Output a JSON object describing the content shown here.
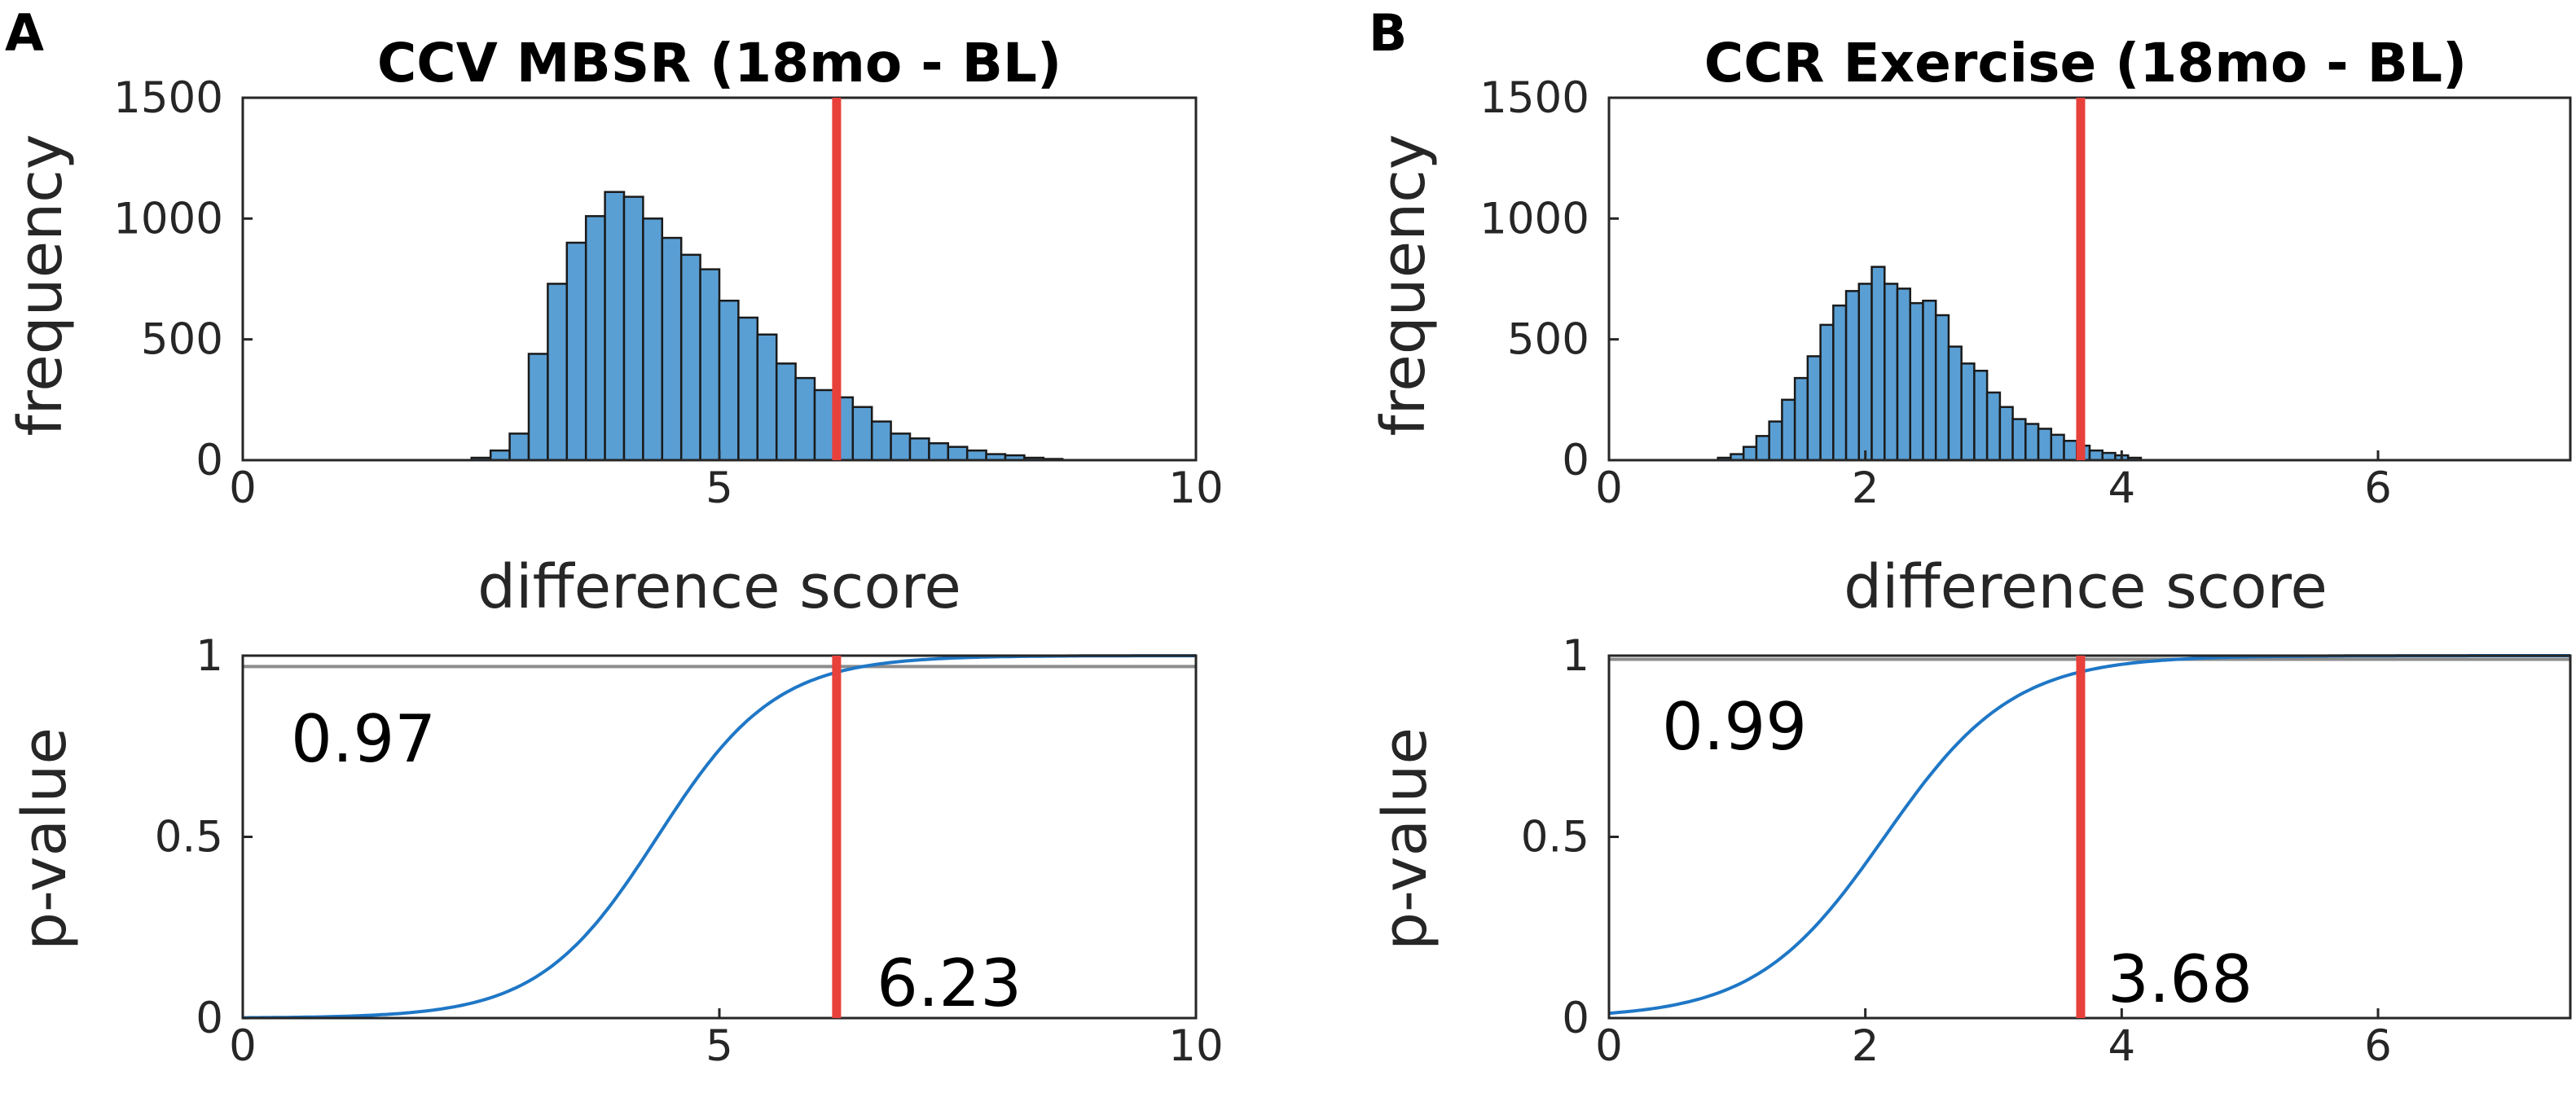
{
  "colors": {
    "bar_fill": "#5a9fd4",
    "bar_edge": "#1a1a1a",
    "threshold": "#e8403a",
    "cdf": "#1f77c6",
    "ref_line": "#8c8c8c",
    "axis": "#262626"
  },
  "chart_data": [
    {
      "id": "A",
      "panel_label": "A",
      "title": "CCV MBSR (18mo - BL)",
      "histogram": {
        "type": "bar",
        "xlabel": "difference score",
        "ylabel": "frequency",
        "xlim": [
          0,
          10
        ],
        "ylim": [
          0,
          1500
        ],
        "xticks": [
          0,
          5,
          10
        ],
        "yticks": [
          0,
          500,
          1000,
          1500
        ],
        "bin_width": 0.2,
        "bins": [
          {
            "x": 2.5,
            "y": 10
          },
          {
            "x": 2.7,
            "y": 40
          },
          {
            "x": 2.9,
            "y": 110
          },
          {
            "x": 3.1,
            "y": 440
          },
          {
            "x": 3.3,
            "y": 730
          },
          {
            "x": 3.5,
            "y": 900
          },
          {
            "x": 3.7,
            "y": 1010
          },
          {
            "x": 3.9,
            "y": 1110
          },
          {
            "x": 4.1,
            "y": 1090
          },
          {
            "x": 4.3,
            "y": 1000
          },
          {
            "x": 4.5,
            "y": 920
          },
          {
            "x": 4.7,
            "y": 850
          },
          {
            "x": 4.9,
            "y": 790
          },
          {
            "x": 5.1,
            "y": 660
          },
          {
            "x": 5.3,
            "y": 590
          },
          {
            "x": 5.5,
            "y": 520
          },
          {
            "x": 5.7,
            "y": 400
          },
          {
            "x": 5.9,
            "y": 340
          },
          {
            "x": 6.1,
            "y": 290
          },
          {
            "x": 6.3,
            "y": 260
          },
          {
            "x": 6.5,
            "y": 220
          },
          {
            "x": 6.7,
            "y": 160
          },
          {
            "x": 6.9,
            "y": 110
          },
          {
            "x": 7.1,
            "y": 90
          },
          {
            "x": 7.3,
            "y": 70
          },
          {
            "x": 7.5,
            "y": 55
          },
          {
            "x": 7.7,
            "y": 40
          },
          {
            "x": 7.9,
            "y": 25
          },
          {
            "x": 8.1,
            "y": 20
          },
          {
            "x": 8.3,
            "y": 10
          },
          {
            "x": 8.5,
            "y": 5
          }
        ],
        "threshold": 6.23
      },
      "cdf": {
        "type": "line",
        "xlabel": "",
        "ylabel": "p-value",
        "xlim": [
          0,
          10
        ],
        "ylim": [
          0,
          1
        ],
        "xticks": [
          0,
          5,
          10
        ],
        "yticks": [
          0,
          0.5,
          1
        ],
        "ytick_labels": [
          "0",
          "0.5",
          "1"
        ],
        "center": 4.35,
        "spread": 0.62,
        "ref_level": 0.97,
        "threshold": 6.23,
        "p_label": "0.97",
        "score_label": "6.23"
      }
    },
    {
      "id": "B",
      "panel_label": "B",
      "title": "CCR Exercise (18mo - BL)",
      "histogram": {
        "type": "bar",
        "xlabel": "difference score",
        "ylabel": "frequency",
        "xlim": [
          0,
          7.5
        ],
        "ylim": [
          0,
          1500
        ],
        "xticks": [
          0,
          2,
          4,
          6
        ],
        "yticks": [
          0,
          500,
          1000,
          1500
        ],
        "bin_width": 0.1,
        "bins": [
          {
            "x": 0.9,
            "y": 10
          },
          {
            "x": 1.0,
            "y": 25
          },
          {
            "x": 1.1,
            "y": 55
          },
          {
            "x": 1.2,
            "y": 100
          },
          {
            "x": 1.3,
            "y": 160
          },
          {
            "x": 1.4,
            "y": 250
          },
          {
            "x": 1.5,
            "y": 340
          },
          {
            "x": 1.6,
            "y": 430
          },
          {
            "x": 1.7,
            "y": 560
          },
          {
            "x": 1.8,
            "y": 640
          },
          {
            "x": 1.9,
            "y": 700
          },
          {
            "x": 2.0,
            "y": 730
          },
          {
            "x": 2.1,
            "y": 800
          },
          {
            "x": 2.2,
            "y": 730
          },
          {
            "x": 2.3,
            "y": 710
          },
          {
            "x": 2.4,
            "y": 650
          },
          {
            "x": 2.5,
            "y": 660
          },
          {
            "x": 2.6,
            "y": 600
          },
          {
            "x": 2.7,
            "y": 470
          },
          {
            "x": 2.8,
            "y": 400
          },
          {
            "x": 2.9,
            "y": 370
          },
          {
            "x": 3.0,
            "y": 280
          },
          {
            "x": 3.1,
            "y": 220
          },
          {
            "x": 3.2,
            "y": 170
          },
          {
            "x": 3.3,
            "y": 150
          },
          {
            "x": 3.4,
            "y": 130
          },
          {
            "x": 3.5,
            "y": 105
          },
          {
            "x": 3.6,
            "y": 80
          },
          {
            "x": 3.7,
            "y": 60
          },
          {
            "x": 3.8,
            "y": 40
          },
          {
            "x": 3.9,
            "y": 30
          },
          {
            "x": 4.0,
            "y": 20
          },
          {
            "x": 4.1,
            "y": 10
          }
        ],
        "threshold": 3.68
      },
      "cdf": {
        "type": "line",
        "xlabel": "",
        "ylabel": "p-value",
        "xlim": [
          0,
          7.5
        ],
        "ylim": [
          0,
          1
        ],
        "xticks": [
          0,
          2,
          4,
          6
        ],
        "yticks": [
          0,
          0.5,
          1
        ],
        "ytick_labels": [
          "0",
          "0.5",
          "1"
        ],
        "center": 2.15,
        "spread": 0.5,
        "ref_level": 0.99,
        "threshold": 3.68,
        "p_label": "0.99",
        "score_label": "3.68"
      }
    }
  ]
}
